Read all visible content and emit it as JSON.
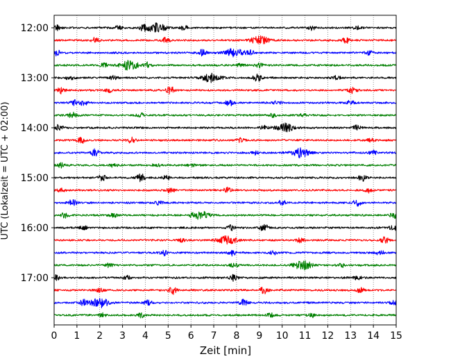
{
  "chart_data": {
    "type": "line",
    "title": "",
    "xlabel": "Zeit  [min]",
    "ylabel": "UTC (Lokalzeit = UTC + 02:00)",
    "xlim": [
      0,
      15
    ],
    "x_ticks": [
      0,
      1,
      2,
      3,
      4,
      5,
      6,
      7,
      8,
      9,
      10,
      11,
      12,
      13,
      14,
      15
    ],
    "vertical_grid": "dotted",
    "time_start": "12:00",
    "trace_interval_min": 15,
    "trace_count": 24,
    "y_tick_labels": [
      "12:00",
      "13:00",
      "14:00",
      "15:00",
      "16:00",
      "17:00"
    ],
    "trace_colors": [
      "#000000",
      "#ff0000",
      "#0000ff",
      "#008000"
    ],
    "series": [
      {
        "start": "12:00",
        "events": [
          [
            0.1,
            0.6
          ],
          [
            2.8,
            0.4
          ],
          [
            3.9,
            0.7
          ],
          [
            4.5,
            1.0
          ],
          [
            5.7,
            0.4
          ],
          [
            11.3,
            0.5
          ],
          [
            13.3,
            0.3
          ]
        ]
      },
      {
        "start": "12:15",
        "events": [
          [
            1.8,
            0.5
          ],
          [
            4.9,
            0.6
          ],
          [
            9.0,
            0.9
          ],
          [
            12.8,
            0.6
          ]
        ]
      },
      {
        "start": "12:30",
        "events": [
          [
            0.1,
            0.7
          ],
          [
            6.5,
            0.7
          ],
          [
            7.9,
            0.9
          ],
          [
            8.6,
            0.5
          ],
          [
            13.8,
            0.4
          ]
        ]
      },
      {
        "start": "12:45",
        "events": [
          [
            2.2,
            0.4
          ],
          [
            3.3,
            1.0
          ],
          [
            4.1,
            0.6
          ],
          [
            8.2,
            0.4
          ],
          [
            9.0,
            0.5
          ]
        ]
      },
      {
        "start": "13:00",
        "events": [
          [
            0.7,
            0.5
          ],
          [
            2.6,
            0.5
          ],
          [
            6.9,
            1.0
          ],
          [
            8.9,
            0.8
          ],
          [
            12.4,
            0.4
          ]
        ]
      },
      {
        "start": "13:15",
        "events": [
          [
            0.3,
            0.6
          ],
          [
            2.4,
            0.4
          ],
          [
            5.1,
            0.8
          ],
          [
            13.1,
            0.7
          ]
        ]
      },
      {
        "start": "13:30",
        "events": [
          [
            0.9,
            0.5
          ],
          [
            1.3,
            0.7
          ],
          [
            7.7,
            0.6
          ],
          [
            9.8,
            0.4
          ],
          [
            13.0,
            0.4
          ]
        ]
      },
      {
        "start": "13:45",
        "events": [
          [
            0.8,
            0.6
          ],
          [
            3.8,
            0.4
          ],
          [
            9.6,
            0.3
          ],
          [
            10.9,
            0.3
          ]
        ]
      },
      {
        "start": "14:00",
        "events": [
          [
            0.2,
            0.6
          ],
          [
            9.2,
            0.4
          ],
          [
            10.1,
            0.9
          ],
          [
            13.3,
            0.6
          ]
        ]
      },
      {
        "start": "14:15",
        "events": [
          [
            1.2,
            0.6
          ],
          [
            3.4,
            0.6
          ],
          [
            8.2,
            0.5
          ],
          [
            13.9,
            0.4
          ]
        ]
      },
      {
        "start": "14:30",
        "events": [
          [
            1.8,
            0.8
          ],
          [
            8.8,
            0.4
          ],
          [
            10.8,
            1.0
          ],
          [
            14.0,
            0.5
          ]
        ]
      },
      {
        "start": "14:45",
        "events": [
          [
            0.3,
            0.5
          ],
          [
            2.6,
            0.4
          ],
          [
            4.5,
            0.4
          ],
          [
            6.0,
            0.3
          ]
        ]
      },
      {
        "start": "15:00",
        "events": [
          [
            2.1,
            0.7
          ],
          [
            3.8,
            0.8
          ],
          [
            4.9,
            0.5
          ],
          [
            13.5,
            0.7
          ]
        ]
      },
      {
        "start": "15:15",
        "events": [
          [
            0.3,
            0.4
          ],
          [
            5.1,
            0.6
          ],
          [
            7.6,
            0.6
          ],
          [
            13.8,
            0.5
          ]
        ]
      },
      {
        "start": "15:30",
        "events": [
          [
            0.8,
            0.7
          ],
          [
            4.6,
            0.4
          ],
          [
            10.0,
            0.5
          ],
          [
            13.3,
            0.7
          ]
        ]
      },
      {
        "start": "15:45",
        "events": [
          [
            0.5,
            0.6
          ],
          [
            2.6,
            0.5
          ],
          [
            6.4,
            0.9
          ],
          [
            14.9,
            0.6
          ]
        ]
      },
      {
        "start": "16:00",
        "events": [
          [
            1.3,
            0.4
          ],
          [
            7.8,
            0.6
          ],
          [
            9.2,
            0.8
          ],
          [
            14.9,
            0.6
          ]
        ]
      },
      {
        "start": "16:15",
        "events": [
          [
            5.6,
            0.3
          ],
          [
            7.6,
            0.9
          ],
          [
            10.8,
            0.5
          ],
          [
            14.5,
            0.6
          ]
        ]
      },
      {
        "start": "16:30",
        "events": [
          [
            4.8,
            0.6
          ],
          [
            7.8,
            0.8
          ],
          [
            9.6,
            0.4
          ],
          [
            14.3,
            0.5
          ]
        ]
      },
      {
        "start": "16:45",
        "events": [
          [
            2.4,
            0.5
          ],
          [
            7.9,
            0.6
          ],
          [
            10.9,
            1.0
          ],
          [
            12.6,
            0.4
          ]
        ]
      },
      {
        "start": "17:00",
        "events": [
          [
            0.1,
            0.5
          ],
          [
            3.2,
            0.4
          ],
          [
            7.9,
            0.7
          ],
          [
            13.3,
            0.4
          ]
        ]
      },
      {
        "start": "17:15",
        "events": [
          [
            2.0,
            0.4
          ],
          [
            5.2,
            0.8
          ],
          [
            9.2,
            0.8
          ],
          [
            13.4,
            0.6
          ]
        ]
      },
      {
        "start": "17:30",
        "events": [
          [
            1.3,
            0.6
          ],
          [
            2.0,
            1.0
          ],
          [
            4.1,
            0.5
          ],
          [
            8.3,
            0.7
          ],
          [
            14.9,
            0.5
          ]
        ]
      },
      {
        "start": "17:45",
        "events": [
          [
            2.1,
            0.4
          ],
          [
            3.8,
            0.5
          ],
          [
            9.5,
            0.4
          ],
          [
            11.3,
            0.4
          ]
        ]
      }
    ]
  }
}
